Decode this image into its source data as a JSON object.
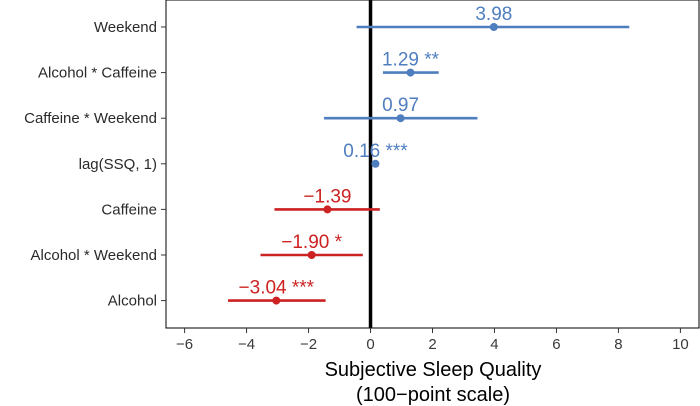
{
  "chart_data": {
    "type": "forest",
    "x_label_lines": [
      "Subjective Sleep Quality",
      "(100−point scale)"
    ],
    "xlim": [
      -6.6,
      10.6
    ],
    "x_ticks": [
      -6,
      -4,
      -2,
      0,
      2,
      4,
      6,
      8,
      10
    ],
    "x_tick_labels": [
      "−6",
      "−4",
      "−2",
      "0",
      "2",
      "4",
      "6",
      "8",
      "10"
    ],
    "reference_line_x": 0,
    "grid": false,
    "colors": {
      "positive": "#4f7ebf",
      "negative": "#cc2222"
    },
    "items": [
      {
        "term": "Weekend",
        "estimate": 3.98,
        "ci_low": -0.45,
        "ci_high": 8.35,
        "label": "3.98"
      },
      {
        "term": "Alcohol * Caffeine",
        "estimate": 1.29,
        "ci_low": 0.4,
        "ci_high": 2.2,
        "label": "1.29 **"
      },
      {
        "term": "Caffeine * Weekend",
        "estimate": 0.97,
        "ci_low": -1.5,
        "ci_high": 3.45,
        "label": "0.97"
      },
      {
        "term": "lag(SSQ, 1)",
        "estimate": 0.16,
        "ci_low": 0.06,
        "ci_high": 0.26,
        "label": "0.16 ***"
      },
      {
        "term": "Caffeine",
        "estimate": -1.39,
        "ci_low": -3.1,
        "ci_high": 0.3,
        "label": "−1.39"
      },
      {
        "term": "Alcohol * Weekend",
        "estimate": -1.9,
        "ci_low": -3.55,
        "ci_high": -0.25,
        "label": "−1.90 *"
      },
      {
        "term": "Alcohol",
        "estimate": -3.04,
        "ci_low": -4.6,
        "ci_high": -1.45,
        "label": "−3.04 ***"
      }
    ]
  }
}
